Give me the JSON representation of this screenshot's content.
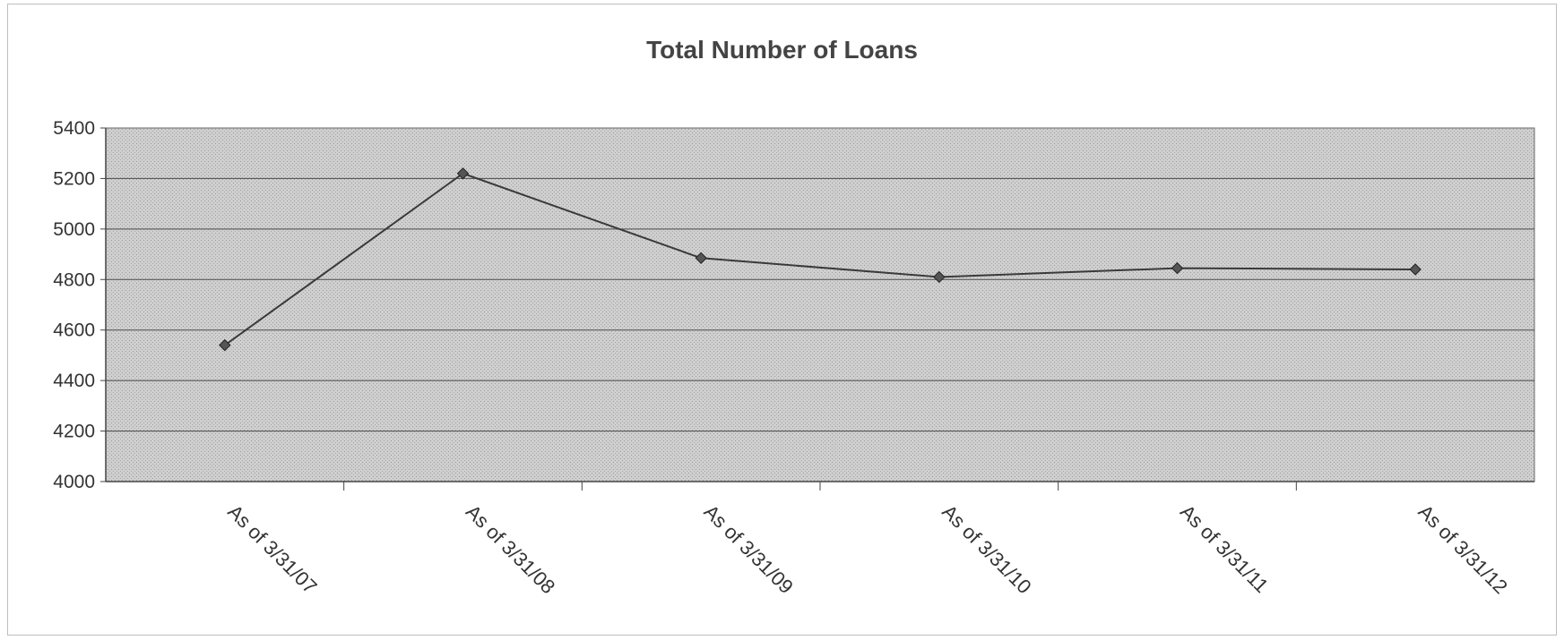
{
  "chart_data": {
    "type": "line",
    "title": "Total Number of Loans",
    "categories": [
      "As of 3/31/07",
      "As of 3/31/08",
      "As of 3/31/09",
      "As of 3/31/10",
      "As of 3/31/11",
      "As of 3/31/12"
    ],
    "series": [
      {
        "values": [
          4540,
          5220,
          4885,
          4810,
          4845,
          4840
        ]
      }
    ],
    "y_ticks": [
      4000,
      4200,
      4400,
      4600,
      4800,
      5000,
      5200,
      5400
    ],
    "ylim": [
      4000,
      5400
    ],
    "grid": true,
    "legend": "none",
    "colors": {
      "line": "#3a3a3a",
      "marker": "#555555",
      "plot_bg": "#c8c8c8",
      "grid": "#4a4a4a"
    }
  }
}
